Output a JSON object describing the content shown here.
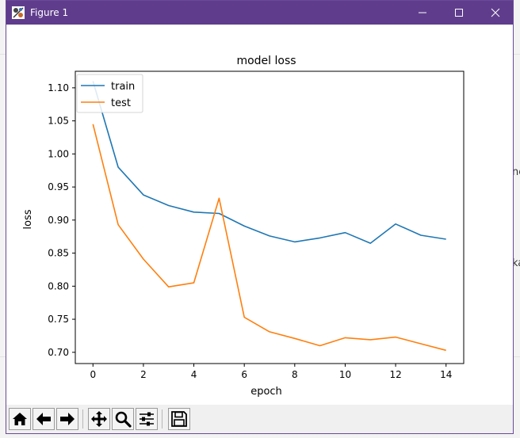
{
  "window": {
    "title": "Figure 1",
    "icons": {
      "app": "matplotlib-figure-icon",
      "minimize": "minimize-icon",
      "maximize": "maximize-icon",
      "close": "close-icon"
    }
  },
  "toolbar": {
    "buttons": [
      {
        "name": "home-button",
        "icon": "home-icon"
      },
      {
        "name": "back-button",
        "icon": "arrow-left-icon"
      },
      {
        "name": "forward-button",
        "icon": "arrow-right-icon"
      },
      {
        "name": "pan-button",
        "icon": "move-icon"
      },
      {
        "name": "zoom-button",
        "icon": "magnifier-icon"
      },
      {
        "name": "configure-subplots-button",
        "icon": "sliders-icon"
      },
      {
        "name": "save-button",
        "icon": "floppy-disk-icon"
      }
    ]
  },
  "colors": {
    "titlebar": "#5f3d8c",
    "train": "#1f77b4",
    "test": "#ff7f0e"
  },
  "chart_data": {
    "type": "line",
    "title": "model loss",
    "xlabel": "epoch",
    "ylabel": "loss",
    "xlim": [
      -0.7,
      14.7
    ],
    "ylim": [
      0.683,
      1.125
    ],
    "xticks": [
      0,
      2,
      4,
      6,
      8,
      10,
      12,
      14
    ],
    "yticks": [
      0.7,
      0.75,
      0.8,
      0.85,
      0.9,
      0.95,
      1.0,
      1.05,
      1.1
    ],
    "ytick_labels": [
      "0.70",
      "0.75",
      "0.80",
      "0.85",
      "0.90",
      "0.95",
      "1.00",
      "1.05",
      "1.10"
    ],
    "legend_position": "upper-left",
    "grid": false,
    "series": [
      {
        "name": "train",
        "color": "#1f77b4",
        "x": [
          0,
          1,
          2,
          3,
          4,
          5,
          6,
          7,
          8,
          9,
          10,
          11,
          12,
          13,
          14
        ],
        "y": [
          1.11,
          0.98,
          0.938,
          0.922,
          0.912,
          0.91,
          0.891,
          0.876,
          0.867,
          0.873,
          0.881,
          0.865,
          0.894,
          0.877,
          0.871
        ]
      },
      {
        "name": "test",
        "color": "#ff7f0e",
        "x": [
          0,
          1,
          2,
          3,
          4,
          5,
          6,
          7,
          8,
          9,
          10,
          11,
          12,
          13,
          14
        ],
        "y": [
          1.045,
          0.893,
          0.841,
          0.799,
          0.805,
          0.933,
          0.753,
          0.731,
          0.721,
          0.71,
          0.722,
          0.719,
          0.723,
          0.713,
          0.703
        ]
      }
    ]
  }
}
